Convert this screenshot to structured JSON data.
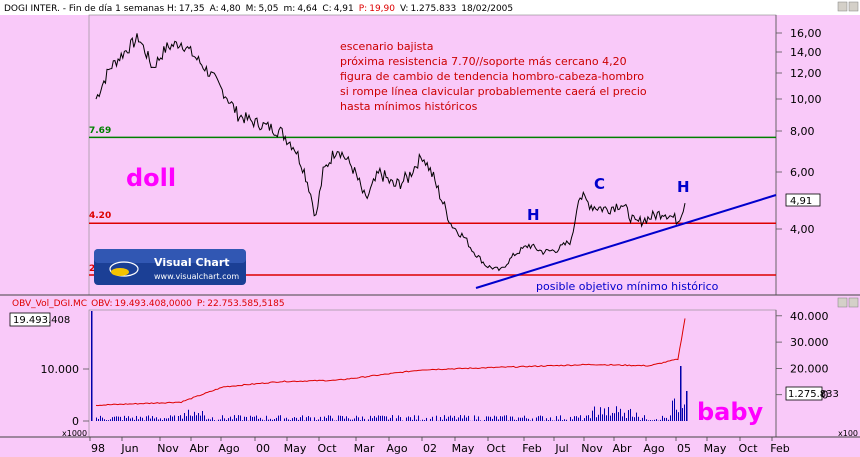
{
  "price_header": {
    "symbol": "DOGI INTER.",
    "period": " - Fin de día 1 semanas ",
    "h_label": "H:",
    "h_value": "17,35",
    "a_label": "A:",
    "a_value": "4,80",
    "max_label": "M:",
    "max_value": "5,05",
    "min_label": "m:",
    "min_value": "4,64",
    "c_label": "C:",
    "c_value": "4,91",
    "p_label": "P:",
    "p_value": "19,90",
    "v_label": "V:",
    "v_value": "1.275.833",
    "date": "18/02/2005"
  },
  "obv_header": {
    "name": "OBV_Vol_DGI.MC",
    "obv_label": "OBV:",
    "obv_value": "19.493.408,0000",
    "p_label": "P:",
    "p_value": "22.753.585,5185"
  },
  "price_axis": {
    "ticks": [
      "16,00",
      "14,00",
      "12,00",
      "10,00",
      "8,00",
      "6,00",
      "4,00"
    ],
    "last_price": "4,91"
  },
  "obv_axis": {
    "ticks": [
      "40.000",
      "30.000",
      "20.000",
      "10.000"
    ],
    "left_ticks": [
      "10.000",
      "0"
    ],
    "scale_label_right": "x100",
    "scale_label_left": "x1000"
  },
  "obv_readout_left": "19.493.408",
  "obv_readout_right": "1.275.833",
  "time_axis": {
    "labels": [
      "98",
      "Jun",
      "Nov",
      "Abr",
      "Ago",
      "00",
      "May",
      "Oct",
      "Mar",
      "Ago",
      "02",
      "May",
      "Oct",
      "Feb",
      "Jul",
      "Nov",
      "Abr",
      "Ago",
      "05",
      "May",
      "Oct",
      "Feb"
    ]
  },
  "level_labels": {
    "resistance": "7.69",
    "support": "4.20",
    "low": "2"
  },
  "annotation": {
    "lines": [
      "escenario bajista",
      "próxima resistencia 7.70//soporte más cercano 4,20",
      "figura de cambio de tendencia hombro-cabeza-hombro",
      "si rompe línea clavicular probablemente caerá el precio",
      "hasta mínimos históricos"
    ],
    "objective": "posible objetivo mínimo histórico"
  },
  "pattern_labels": {
    "left_shoulder": "H",
    "head": "C",
    "right_shoulder": "H"
  },
  "stickers": {
    "doll": "doll",
    "baby": "baby"
  },
  "logo": {
    "name": "Visual Chart",
    "url": "www.visualchart.com"
  },
  "colors": {
    "price_line": "#000000",
    "resistance": "#008000",
    "support": "#dd0000",
    "trend": "#0000cc",
    "obv_line": "#dd0000",
    "volume": "#0000aa",
    "annotation": "#cc0000",
    "sticker": "#ff00ff",
    "pattern": "#0000cc"
  },
  "chart_data": [
    {
      "type": "line",
      "title": "DOGI INTER. - Fin de día 1 semanas",
      "ylim": [
        0,
        17
      ],
      "series": [
        {
          "name": "DOGI INTER.",
          "x": [
            "1998-03",
            "1998-05",
            "1998-07",
            "1998-09",
            "1998-11",
            "1999-01",
            "1999-03",
            "1999-05",
            "1999-07",
            "1999-09",
            "1999-11",
            "2000-01",
            "2000-03",
            "2000-05",
            "2000-07",
            "2000-09",
            "2000-10",
            "2000-11",
            "2001-01",
            "2001-03",
            "2001-05",
            "2001-07",
            "2001-09",
            "2001-11",
            "2002-01",
            "2002-03",
            "2002-05",
            "2002-07",
            "2002-08",
            "2002-10",
            "2002-12",
            "2003-02",
            "2003-04",
            "2003-06",
            "2003-08",
            "2003-10",
            "2003-11",
            "2004-01",
            "2004-03",
            "2004-05",
            "2004-07",
            "2004-09",
            "2004-11",
            "2005-01",
            "2005-02"
          ],
          "values": [
            10.0,
            12.5,
            14.0,
            15.5,
            12.5,
            14.5,
            15.0,
            13.5,
            12.0,
            10.5,
            9.0,
            8.6,
            8.3,
            8.0,
            7.2,
            5.5,
            4.4,
            6.0,
            7.2,
            6.3,
            5.0,
            6.0,
            5.5,
            5.8,
            6.8,
            5.5,
            4.2,
            3.6,
            3.1,
            2.4,
            2.2,
            2.9,
            3.3,
            3.0,
            3.1,
            3.5,
            5.2,
            4.8,
            4.7,
            4.9,
            4.2,
            4.4,
            4.6,
            4.3,
            4.91
          ]
        },
        {
          "name": "OBV_Vol_DGI.MC",
          "x": [
            "1998-03",
            "1999-03",
            "1999-09",
            "2000-05",
            "2001-01",
            "2002-01",
            "2003-01",
            "2004-01",
            "2004-09",
            "2005-01",
            "2005-02"
          ],
          "values": [
            60,
            72,
            130,
            150,
            155,
            195,
            205,
            215,
            210,
            235,
            390
          ]
        }
      ],
      "levels": {
        "resistance": 7.69,
        "support": 4.2,
        "historic_low": 2.0
      }
    }
  ]
}
